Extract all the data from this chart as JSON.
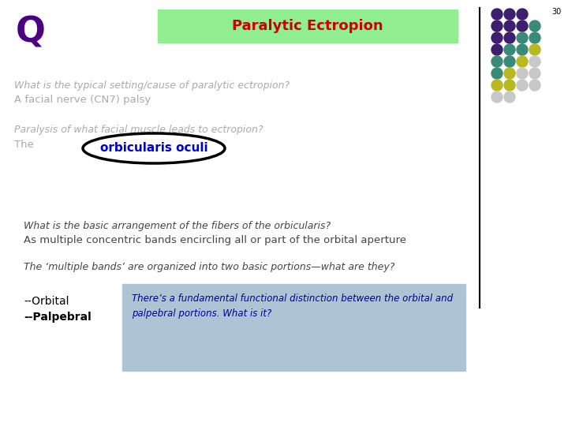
{
  "title": "Paralytic Ectropion",
  "title_bg": "#90EE90",
  "title_color": "#CC0000",
  "slide_number": "30",
  "Q_label": "Q",
  "Q_color": "#4B0082",
  "line1_italic": "What is the typical setting/cause of paralytic ectropion?",
  "line1_color": "#aaaaaa",
  "line2": "A facial nerve (CN7) palsy",
  "line2_color": "#aaaaaa",
  "line3_italic": "Paralysis of what facial muscle leads to ectropion?",
  "line3_color": "#aaaaaa",
  "line4_highlight": "orbicularis oculi",
  "line4_highlight_color": "#0000cc",
  "line5_italic": "What is the basic arrangement of the fibers of the orbicularis?",
  "line5_color": "#444444",
  "line6": "As multiple concentric bands encircling all or part of the orbital aperture",
  "line6_color": "#444444",
  "line7_italic": "The ‘multiple bands’ are organized into two basic portions—what are they?",
  "line7_color": "#444444",
  "left_label1": "--Orbital",
  "left_label2": "--Palpebral",
  "left_labels_color": "#000000",
  "box_text": "There’s a fundamental functional distinction between the orbital and\npalpebral portions. What is it?",
  "box_bg": "#adc4d4",
  "box_text_color": "#000099",
  "dot_colors": [
    [
      "#3d1f6e",
      "#3d1f6e",
      "#3d1f6e"
    ],
    [
      "#3d1f6e",
      "#3d1f6e",
      "#3d1f6e",
      "#3a8a7a"
    ],
    [
      "#3d1f6e",
      "#3d1f6e",
      "#3a8a7a",
      "#3a8a7a"
    ],
    [
      "#3d1f6e",
      "#3a8a7a",
      "#3a8a7a",
      "#b8b820"
    ],
    [
      "#3a8a7a",
      "#3a8a7a",
      "#b8b820",
      "#c8c8c8"
    ],
    [
      "#3a8a7a",
      "#b8b820",
      "#c8c8c8",
      "#c8c8c8"
    ],
    [
      "#b8b820",
      "#b8b820",
      "#c8c8c8",
      "#c8c8c8"
    ],
    [
      "#c8c8c8",
      "#c8c8c8"
    ]
  ]
}
